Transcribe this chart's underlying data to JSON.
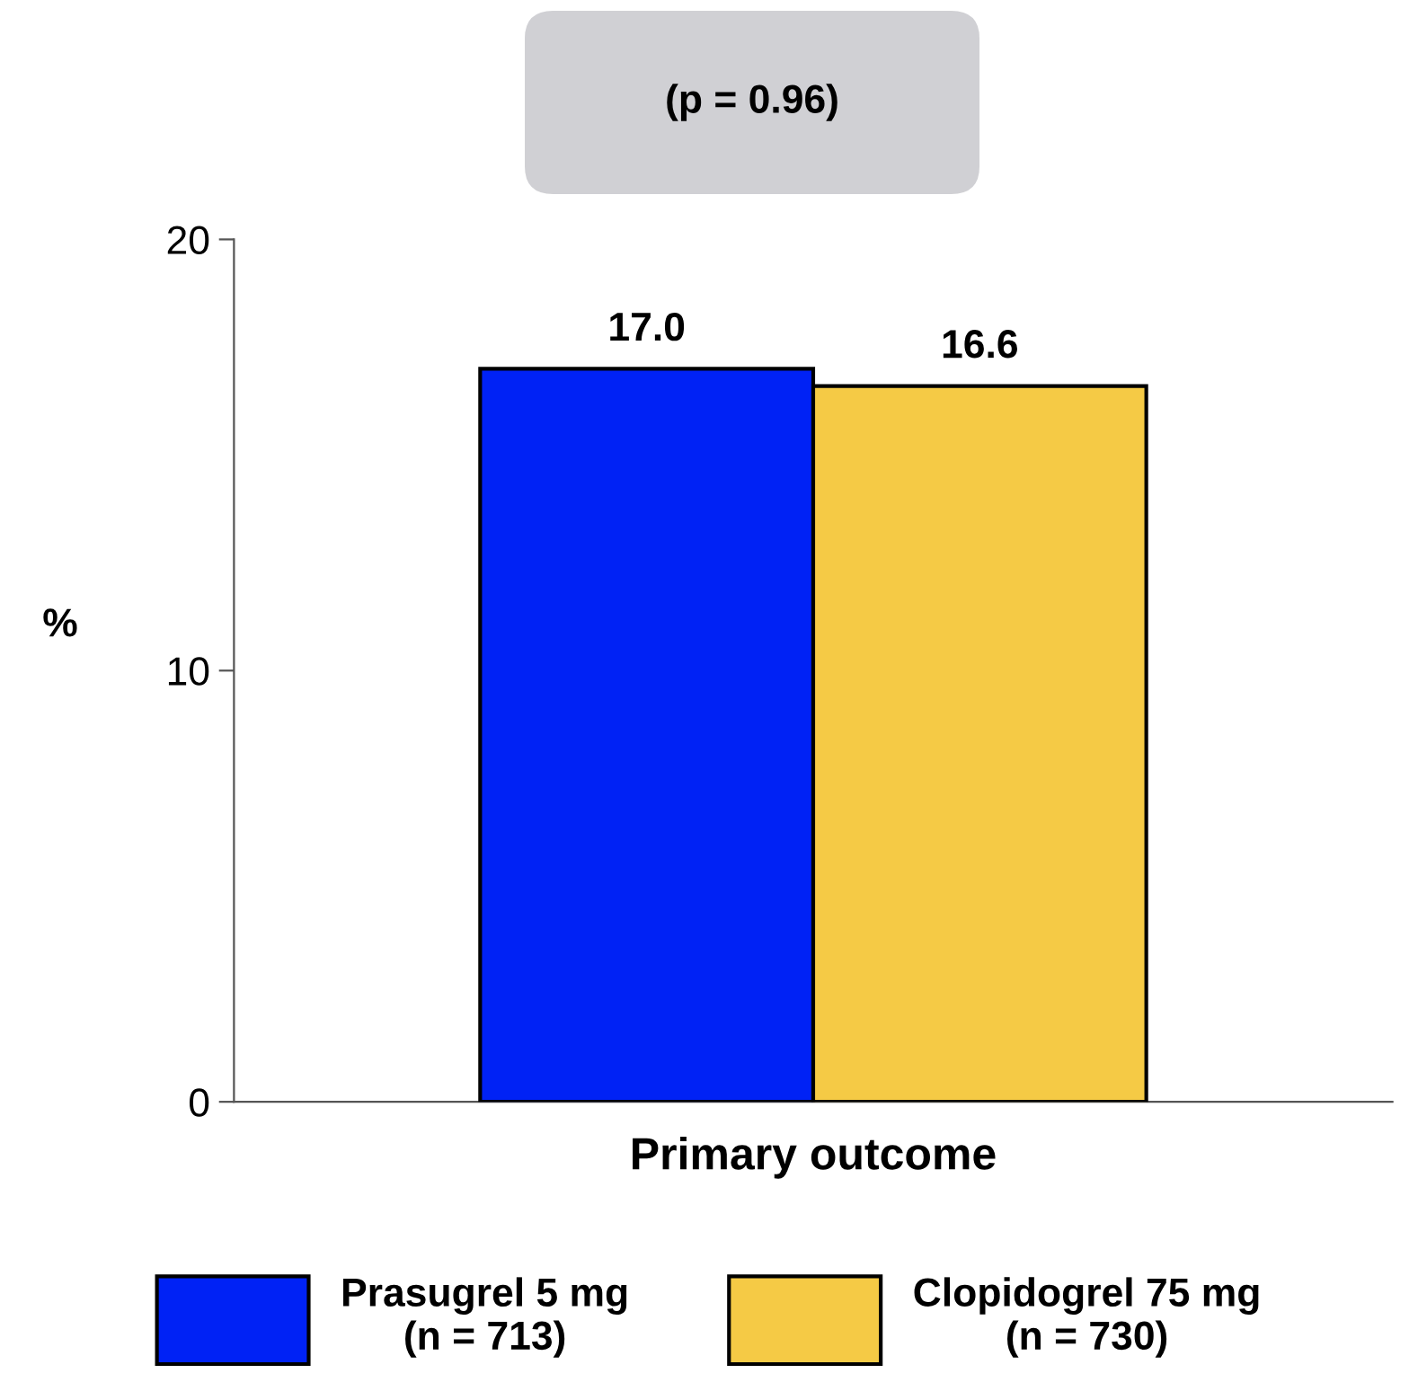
{
  "chart_data": {
    "type": "bar",
    "categories": [
      "Primary outcome"
    ],
    "series": [
      {
        "name": "Prasugrel 5 mg\n(n = 713)",
        "color": "#0022f5",
        "values": [
          17.0
        ],
        "value_labels": [
          "17.0"
        ]
      },
      {
        "name": "Clopidogrel 75 mg\n(n = 730)",
        "color": "#f5ca45",
        "values": [
          16.6
        ],
        "value_labels": [
          "16.6"
        ]
      }
    ],
    "ylabel": "%",
    "ylim": [
      0,
      20
    ],
    "yticks": [
      0,
      10,
      20
    ],
    "legend": "bottom",
    "grid": false,
    "annotations": [
      "(p = 0.96)"
    ]
  }
}
